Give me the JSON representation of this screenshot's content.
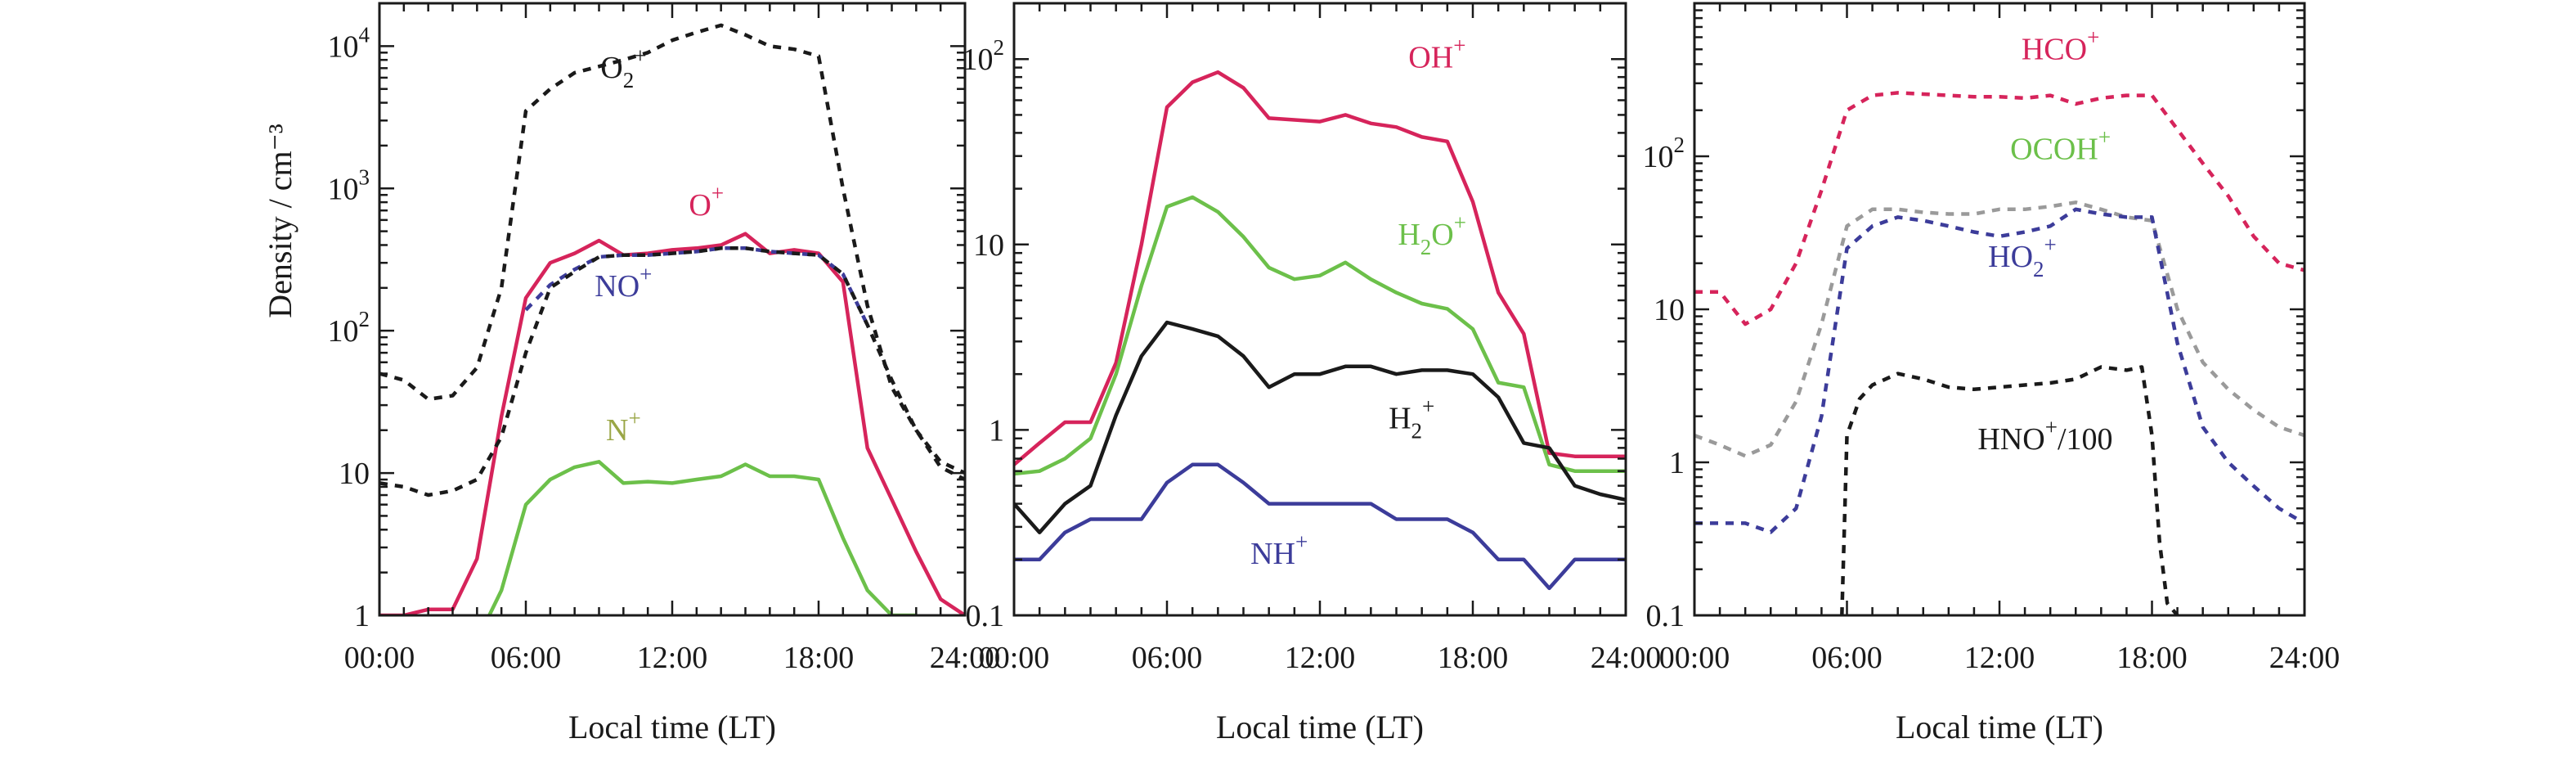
{
  "colors": {
    "red": "#d6245b",
    "green": "#6cc04a",
    "blue": "#3c3c9a",
    "black": "#1a1a1a",
    "gray": "#9a9a9a"
  },
  "shared": {
    "ylabel": "Density / cm⁻³",
    "xlabel": "Local time (LT)",
    "xticks": [
      "00:00",
      "06:00",
      "12:00",
      "18:00",
      "24:00"
    ]
  },
  "chart_data": [
    {
      "type": "line",
      "yscale": "log",
      "xlim": [
        0,
        24
      ],
      "ylim": [
        1,
        20000
      ],
      "xlabel": "Local time (LT)",
      "ylabel": "Density / cm⁻³",
      "yticks": [
        {
          "value": 1,
          "base": "1",
          "sup": ""
        },
        {
          "value": 10,
          "base": "10",
          "sup": ""
        },
        {
          "value": 100,
          "base": "10",
          "sup": "2"
        },
        {
          "value": 1000,
          "base": "10",
          "sup": "3"
        },
        {
          "value": 10000,
          "base": "10",
          "sup": "4"
        }
      ],
      "series": [
        {
          "name": "O2+",
          "label_base": "O",
          "label_sub": "2",
          "label_sup": "+",
          "label_at": [
            10,
            6000
          ],
          "label_color": "black",
          "color": "black",
          "dash": true,
          "x": [
            0,
            1,
            2,
            3,
            4,
            5,
            6,
            7,
            8,
            9,
            10,
            11,
            12,
            13,
            14,
            15,
            16,
            17,
            18,
            19,
            20,
            21,
            22,
            23,
            24
          ],
          "y": [
            50,
            45,
            33,
            35,
            55,
            200,
            3500,
            5000,
            6500,
            7200,
            8000,
            9000,
            11000,
            12500,
            14000,
            12000,
            10000,
            9500,
            8500,
            1000,
            150,
            40,
            20,
            12,
            10
          ]
        },
        {
          "name": "O+",
          "label_base": "O",
          "label_sub": "",
          "label_sup": "+",
          "label_at": [
            13.4,
            650
          ],
          "label_color": "red",
          "color": "red",
          "dash": false,
          "x": [
            0,
            1,
            2,
            3,
            4,
            5,
            6,
            7,
            8,
            9,
            10,
            11,
            12,
            13,
            14,
            15,
            16,
            17,
            18,
            19,
            20,
            21,
            22,
            23,
            24
          ],
          "y": [
            1,
            1,
            1.1,
            1.1,
            2.5,
            25,
            170,
            300,
            350,
            430,
            340,
            350,
            370,
            380,
            400,
            480,
            350,
            370,
            350,
            220,
            15,
            6.5,
            2.8,
            1.3,
            1
          ]
        },
        {
          "name": "NO+",
          "label_base": "NO",
          "label_sub": "",
          "label_sup": "+",
          "label_at": [
            10,
            175
          ],
          "label_color": "blue",
          "color": "blue",
          "dash": true,
          "x": [
            6,
            7,
            8,
            9,
            10,
            11,
            12,
            13,
            14,
            15,
            16,
            17,
            18,
            19,
            20
          ],
          "y": [
            140,
            210,
            270,
            330,
            340,
            340,
            350,
            360,
            380,
            380,
            360,
            350,
            340,
            250,
            110
          ]
        },
        {
          "name": "NO+ (gray tail)",
          "legend": false,
          "color": "black",
          "dash": true,
          "x": [
            0,
            1,
            2,
            3,
            4,
            5,
            6,
            7,
            8,
            9,
            10,
            11,
            12,
            13,
            14,
            15,
            16,
            17,
            18,
            19,
            20,
            21,
            22,
            23,
            24
          ],
          "y": [
            8.5,
            8,
            7,
            7.5,
            9,
            18,
            70,
            200,
            260,
            330,
            340,
            340,
            350,
            360,
            380,
            380,
            360,
            350,
            340,
            250,
            110,
            45,
            20,
            11,
            9
          ]
        },
        {
          "name": "N+",
          "label_base": "N",
          "label_sub": "",
          "label_sup": "+",
          "label_at": [
            10,
            17
          ],
          "label_color": "#9aa646",
          "color": "green",
          "dash": false,
          "x": [
            4.5,
            5,
            6,
            7,
            8,
            9,
            10,
            11,
            12,
            13,
            14,
            15,
            16,
            17,
            18,
            19,
            20,
            21,
            22
          ],
          "y": [
            1,
            1.5,
            6,
            9,
            11,
            12,
            8.5,
            8.7,
            8.5,
            9,
            9.5,
            11.5,
            9.5,
            9.5,
            9,
            3.5,
            1.5,
            1,
            1
          ]
        }
      ]
    },
    {
      "type": "line",
      "yscale": "log",
      "xlim": [
        0,
        24
      ],
      "ylim": [
        0.1,
        200
      ],
      "xlabel": "Local time (LT)",
      "ylabel": "",
      "yticks": [
        {
          "value": 0.1,
          "base": "0.1",
          "sup": ""
        },
        {
          "value": 1,
          "base": "1",
          "sup": ""
        },
        {
          "value": 10,
          "base": "10",
          "sup": ""
        },
        {
          "value": 100,
          "base": "10",
          "sup": "2"
        }
      ],
      "series": [
        {
          "name": "OH+",
          "label_base": "OH",
          "label_sub": "",
          "label_sup": "+",
          "label_at": [
            16.6,
            90
          ],
          "label_color": "red",
          "color": "red",
          "dash": false,
          "x": [
            0,
            1,
            2,
            3,
            4,
            5,
            6,
            7,
            8,
            9,
            10,
            11,
            12,
            13,
            14,
            15,
            16,
            17,
            18,
            19,
            20,
            21,
            22,
            23,
            24
          ],
          "y": [
            0.65,
            0.85,
            1.1,
            1.1,
            2.3,
            10,
            55,
            75,
            85,
            70,
            48,
            47,
            46,
            50,
            45,
            43,
            38,
            36,
            17,
            5.5,
            3.3,
            0.75,
            0.72,
            0.72,
            0.72
          ]
        },
        {
          "name": "H2O+",
          "label_base": "H",
          "label_sub": "2",
          "label_sup": "+",
          "label_mid": "O",
          "label_at": [
            16.4,
            10
          ],
          "label_color": "green",
          "color": "green",
          "dash": false,
          "x": [
            0,
            1,
            2,
            3,
            4,
            5,
            6,
            7,
            8,
            9,
            10,
            11,
            12,
            13,
            14,
            15,
            16,
            17,
            18,
            19,
            20,
            21,
            22,
            23,
            24
          ],
          "y": [
            0.58,
            0.6,
            0.7,
            0.9,
            2,
            6,
            16,
            18,
            15,
            11,
            7.5,
            6.5,
            6.8,
            8,
            6.5,
            5.5,
            4.8,
            4.5,
            3.5,
            1.8,
            1.7,
            0.65,
            0.6,
            0.6,
            0.6
          ]
        },
        {
          "name": "H2+",
          "label_base": "H",
          "label_sub": "2",
          "label_sup": "+",
          "label_at": [
            15.6,
            1.02
          ],
          "label_color": "black",
          "color": "black",
          "dash": false,
          "x": [
            0,
            1,
            2,
            3,
            4,
            5,
            6,
            7,
            8,
            9,
            10,
            11,
            12,
            13,
            14,
            15,
            16,
            17,
            18,
            19,
            20,
            21,
            22,
            23,
            24
          ],
          "y": [
            0.4,
            0.28,
            0.4,
            0.5,
            1.2,
            2.5,
            3.8,
            3.5,
            3.2,
            2.5,
            1.7,
            2,
            2,
            2.2,
            2.2,
            2,
            2.1,
            2.1,
            2,
            1.5,
            0.85,
            0.8,
            0.5,
            0.45,
            0.42
          ]
        },
        {
          "name": "NH+",
          "label_base": "NH",
          "label_sub": "",
          "label_sup": "+",
          "label_at": [
            10.4,
            0.19
          ],
          "label_color": "blue",
          "color": "blue",
          "dash": false,
          "x": [
            0,
            1,
            2,
            3,
            4,
            5,
            6,
            7,
            8,
            9,
            10,
            11,
            12,
            13,
            14,
            15,
            16,
            17,
            18,
            19,
            20,
            21,
            22,
            23,
            24
          ],
          "y": [
            0.2,
            0.2,
            0.28,
            0.33,
            0.33,
            0.33,
            0.52,
            0.65,
            0.65,
            0.52,
            0.4,
            0.4,
            0.4,
            0.4,
            0.4,
            0.33,
            0.33,
            0.33,
            0.28,
            0.2,
            0.2,
            0.14,
            0.2,
            0.2,
            0.2
          ]
        }
      ]
    },
    {
      "type": "line",
      "yscale": "log",
      "xlim": [
        0,
        24
      ],
      "ylim": [
        0.1,
        1000
      ],
      "xlabel": "Local time (LT)",
      "ylabel": "",
      "yticks": [
        {
          "value": 0.1,
          "base": "0.1",
          "sup": ""
        },
        {
          "value": 1,
          "base": "1",
          "sup": ""
        },
        {
          "value": 10,
          "base": "10",
          "sup": ""
        },
        {
          "value": 100,
          "base": "10",
          "sup": "2"
        }
      ],
      "series": [
        {
          "name": "HCO+",
          "label_base": "HCO",
          "label_sub": "",
          "label_sup": "+",
          "label_at": [
            14.4,
            430
          ],
          "label_color": "red",
          "color": "red",
          "dash": true,
          "x": [
            0,
            1,
            2,
            3,
            4,
            5,
            6,
            7,
            8,
            9,
            10,
            11,
            12,
            13,
            14,
            15,
            16,
            17,
            18,
            19,
            20,
            21,
            22,
            23,
            24
          ],
          "y": [
            13,
            13,
            8,
            10,
            20,
            60,
            200,
            250,
            260,
            255,
            250,
            245,
            245,
            240,
            250,
            220,
            240,
            250,
            250,
            150,
            90,
            55,
            30,
            20,
            18
          ]
        },
        {
          "name": "OCOH+",
          "label_base": "OCOH",
          "label_sub": "",
          "label_sup": "+",
          "label_at": [
            14.4,
            96
          ],
          "label_color": "green",
          "color": "gray",
          "dash": true,
          "x": [
            0,
            1,
            2,
            3,
            4,
            5,
            6,
            7,
            8,
            9,
            10,
            11,
            12,
            13,
            14,
            15,
            16,
            17,
            18,
            19,
            20,
            21,
            22,
            23,
            24
          ],
          "y": [
            1.5,
            1.3,
            1.1,
            1.3,
            2.5,
            8,
            35,
            45,
            45,
            43,
            42,
            42,
            45,
            45,
            47,
            50,
            45,
            40,
            38,
            10,
            4.5,
            3,
            2.2,
            1.7,
            1.5
          ]
        },
        {
          "name": "HO2+",
          "label_base": "HO",
          "label_sub": "2",
          "label_sup": "+",
          "label_at": [
            12.9,
            19
          ],
          "label_color": "blue",
          "color": "blue",
          "dash": true,
          "x": [
            0,
            1,
            2,
            3,
            4,
            5,
            6,
            7,
            8,
            9,
            10,
            11,
            12,
            13,
            14,
            15,
            16,
            17,
            18,
            19,
            20,
            21,
            22,
            23,
            24
          ],
          "y": [
            0.4,
            0.4,
            0.4,
            0.35,
            0.5,
            2,
            25,
            35,
            40,
            38,
            35,
            32,
            30,
            32,
            35,
            45,
            42,
            40,
            40,
            6,
            1.7,
            1,
            0.7,
            0.5,
            0.4
          ]
        },
        {
          "name": "HNO+/100",
          "label_base": "HNO",
          "label_sub": "",
          "label_sup": "+",
          "label_tail": "/100",
          "label_at": [
            13.8,
            1.22
          ],
          "label_color": "black",
          "color": "black",
          "dash": true,
          "x": [
            5.8,
            6,
            6.5,
            7,
            8,
            9,
            10,
            11,
            12,
            13,
            14,
            15,
            16,
            17,
            17.6,
            18,
            18.3,
            18.6,
            19
          ],
          "y": [
            0.1,
            1.5,
            2.6,
            3.2,
            3.8,
            3.5,
            3.1,
            3,
            3.1,
            3.2,
            3.3,
            3.5,
            4.2,
            4,
            4.2,
            1.5,
            0.3,
            0.12,
            0.1
          ]
        }
      ]
    }
  ]
}
